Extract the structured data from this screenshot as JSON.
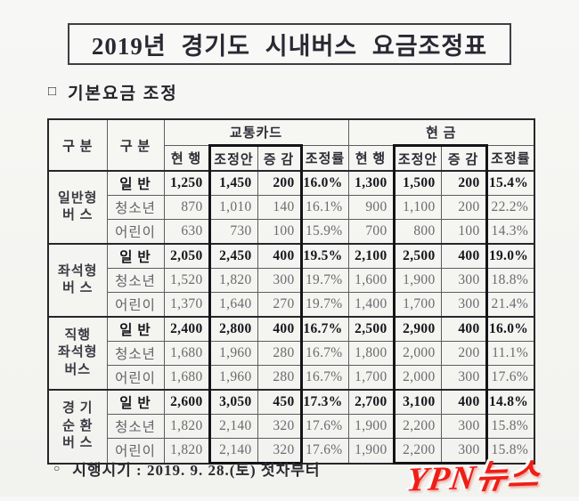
{
  "title": "2019년 경기도 시내버스 요금조정표",
  "section": {
    "marker": "□",
    "label": "기본요금 조정"
  },
  "footer": {
    "marker": "○",
    "label": "시행시기 : 2019. 9. 28.(토) 첫차부터"
  },
  "watermark": "YPN뉴스",
  "colors": {
    "watermark_red": "#ee1f16",
    "ink": "#2c2c33",
    "muted_ink": "#6b6b70",
    "border_dark": "#26262b"
  },
  "table": {
    "category_header_1": "구 분",
    "category_header_2": "구 분",
    "sections": {
      "card": "교통카드",
      "cash": "현 금"
    },
    "sub_headers": [
      "현 행",
      "조정안",
      "증 감",
      "조정률"
    ],
    "groups": [
      {
        "type": "일반형\n버 스",
        "rows": [
          {
            "label": "일 반",
            "emphasis": true,
            "card": [
              "1,250",
              "1,450",
              "200",
              "16.0%"
            ],
            "cash": [
              "1,300",
              "1,500",
              "200",
              "15.4%"
            ]
          },
          {
            "label": "청소년",
            "emphasis": false,
            "card": [
              "870",
              "1,010",
              "140",
              "16.1%"
            ],
            "cash": [
              "900",
              "1,100",
              "200",
              "22.2%"
            ]
          },
          {
            "label": "어린이",
            "emphasis": false,
            "card": [
              "630",
              "730",
              "100",
              "15.9%"
            ],
            "cash": [
              "700",
              "800",
              "100",
              "14.3%"
            ]
          }
        ]
      },
      {
        "type": "좌석형\n버 스",
        "rows": [
          {
            "label": "일 반",
            "emphasis": true,
            "card": [
              "2,050",
              "2,450",
              "400",
              "19.5%"
            ],
            "cash": [
              "2,100",
              "2,500",
              "400",
              "19.0%"
            ]
          },
          {
            "label": "청소년",
            "emphasis": false,
            "card": [
              "1,520",
              "1,820",
              "300",
              "19.7%"
            ],
            "cash": [
              "1,600",
              "1,900",
              "300",
              "18.8%"
            ]
          },
          {
            "label": "어린이",
            "emphasis": false,
            "card": [
              "1,370",
              "1,640",
              "270",
              "19.7%"
            ],
            "cash": [
              "1,400",
              "1,700",
              "300",
              "21.4%"
            ]
          }
        ]
      },
      {
        "type": "직행\n좌석형\n버스",
        "rows": [
          {
            "label": "일 반",
            "emphasis": true,
            "card": [
              "2,400",
              "2,800",
              "400",
              "16.7%"
            ],
            "cash": [
              "2,500",
              "2,900",
              "400",
              "16.0%"
            ]
          },
          {
            "label": "청소년",
            "emphasis": false,
            "card": [
              "1,680",
              "1,960",
              "280",
              "16.7%"
            ],
            "cash": [
              "1,800",
              "2,000",
              "200",
              "11.1%"
            ]
          },
          {
            "label": "어린이",
            "emphasis": false,
            "card": [
              "1,680",
              "1,960",
              "280",
              "16.7%"
            ],
            "cash": [
              "1,700",
              "2,000",
              "300",
              "17.6%"
            ]
          }
        ]
      },
      {
        "type": "경 기\n순 환\n버 스",
        "rows": [
          {
            "label": "일 반",
            "emphasis": true,
            "card": [
              "2,600",
              "3,050",
              "450",
              "17.3%"
            ],
            "cash": [
              "2,700",
              "3,100",
              "400",
              "14.8%"
            ]
          },
          {
            "label": "청소년",
            "emphasis": false,
            "card": [
              "1,820",
              "2,140",
              "320",
              "17.6%"
            ],
            "cash": [
              "1,900",
              "2,200",
              "300",
              "15.8%"
            ]
          },
          {
            "label": "어린이",
            "emphasis": false,
            "card": [
              "1,820",
              "2,140",
              "320",
              "17.6%"
            ],
            "cash": [
              "1,900",
              "2,200",
              "300",
              "15.8%"
            ]
          }
        ]
      }
    ]
  }
}
